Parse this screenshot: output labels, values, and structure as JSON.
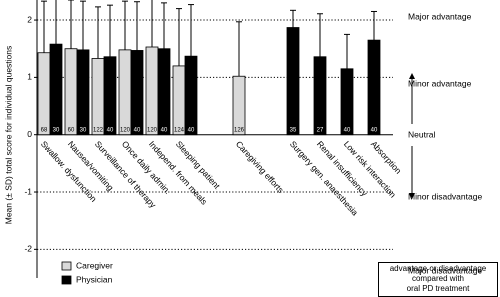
{
  "chart_data": {
    "type": "bar",
    "y_label": "Mean (± SD) total score for individual questions",
    "categories": [
      "Swallow. dysfunction",
      "Nausea/vomiting",
      "Surveillance of therapy",
      "Once daily admin.",
      "Independ. from meals",
      "Sleeping patient",
      null,
      "Caregiving efforts",
      null,
      "Surgery gen. anaesthesia",
      "Renal insufficiency",
      "Low risk interaction",
      "Absorption"
    ],
    "series": [
      {
        "name": "Caregiver",
        "color": "#d9d9d9",
        "values": [
          1.43,
          1.5,
          1.33,
          1.48,
          1.53,
          1.2,
          null,
          1.02,
          null,
          null,
          null,
          null,
          null
        ],
        "errors": [
          0.9,
          0.85,
          0.9,
          0.85,
          0.85,
          1.0,
          null,
          0.95,
          null,
          null,
          null,
          null,
          null
        ],
        "n": [
          68,
          60,
          122,
          120,
          120,
          124,
          null,
          126,
          null,
          null,
          null,
          null,
          null
        ]
      },
      {
        "name": "Physician",
        "color": "#000000",
        "values": [
          1.58,
          1.48,
          1.36,
          1.47,
          1.5,
          1.37,
          null,
          null,
          null,
          1.87,
          1.36,
          1.15,
          1.65
        ],
        "errors": [
          0.8,
          0.85,
          0.9,
          0.85,
          0.8,
          0.9,
          null,
          null,
          null,
          0.3,
          0.75,
          0.6,
          0.5
        ],
        "n": [
          30,
          30,
          40,
          40,
          40,
          40,
          null,
          null,
          null,
          35,
          27,
          40,
          40
        ]
      }
    ],
    "ylim": [
      -2.5,
      2.35
    ],
    "yticks": [
      -2,
      -1,
      0,
      1,
      2
    ],
    "grid": true,
    "scale_labels": [
      "Major advantage",
      "Minor advantage",
      "Neutral",
      "Minor disadvantage",
      "Major disadvantage"
    ],
    "note": [
      "advantage or disadvantage",
      "compared with",
      "oral PD treatment"
    ]
  }
}
